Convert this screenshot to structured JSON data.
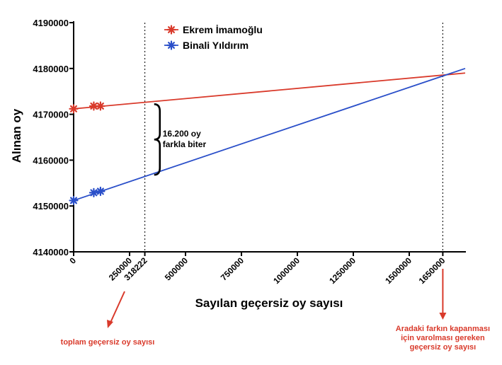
{
  "chart_data": {
    "type": "line",
    "xlabel": "Sayılan geçersiz oy sayısı",
    "ylabel": "Alınan oy",
    "xlim": [
      0,
      1750000
    ],
    "ylim": [
      4140000,
      4190000
    ],
    "x_ticks": [
      0,
      250000,
      318222,
      500000,
      750000,
      1000000,
      1250000,
      1500000,
      1650000
    ],
    "x_tick_labels": [
      "0",
      "250000",
      "318222",
      "500000",
      "750000",
      "1000000",
      "1250000",
      "1500000",
      "1650000"
    ],
    "y_ticks": [
      4140000,
      4150000,
      4160000,
      4170000,
      4180000,
      4190000
    ],
    "y_tick_labels": [
      "4140000",
      "4150000",
      "4160000",
      "4170000",
      "4180000",
      "4190000"
    ],
    "grid": false,
    "legend_position": "top-left",
    "reference_lines_x": [
      318222,
      1650000
    ],
    "series": [
      {
        "name": "Ekrem İmamoğlu",
        "color": "#d93a2b",
        "line": {
          "x": [
            0,
            1750000
          ],
          "y": [
            4171200,
            4179000
          ]
        },
        "markers": {
          "x": [
            0,
            90000,
            120000
          ],
          "y": [
            4171200,
            4171800,
            4171800
          ]
        }
      },
      {
        "name": "Binali Yıldırım",
        "color": "#2a4fc9",
        "line": {
          "x": [
            0,
            1750000
          ],
          "y": [
            4151200,
            4180000
          ]
        },
        "markers": {
          "x": [
            0,
            90000,
            120000
          ],
          "y": [
            4151200,
            4152900,
            4153200
          ]
        }
      }
    ],
    "annotations": {
      "brace_x": 360000,
      "brace_y_top": 4172200,
      "brace_y_bottom": 4156800,
      "gap_label_lines": [
        "16.200 oy",
        "farkla biter"
      ],
      "left_note": "toplam geçersiz oy sayısı",
      "right_note_lines": [
        "Aradaki farkın kapanması",
        "için varolması gereken",
        "geçersiz oy sayısı"
      ],
      "note_color": "#d93a2b"
    }
  }
}
